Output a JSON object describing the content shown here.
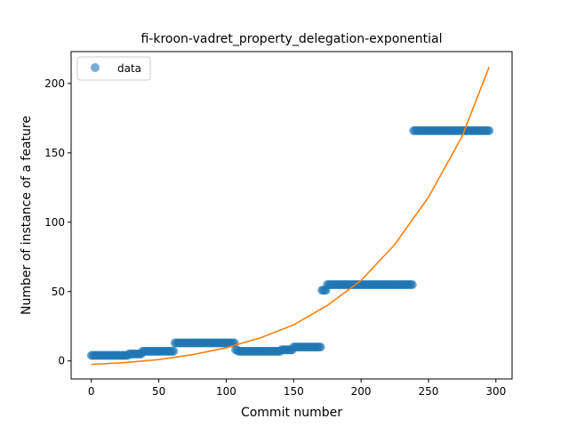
{
  "chart_data": {
    "type": "scatter",
    "title": "fi-kroon-vadret_property_delegation-exponential",
    "xlabel": "Commit number",
    "ylabel": "Number of instance of a feature",
    "xlim": [
      -15,
      312
    ],
    "ylim": [
      -13,
      223
    ],
    "xticks": [
      0,
      50,
      100,
      150,
      200,
      250,
      300
    ],
    "yticks": [
      0,
      50,
      100,
      150,
      200
    ],
    "grid": false,
    "legend": {
      "placement": "upper-left",
      "entries": [
        "data"
      ]
    },
    "colors": {
      "data": "#1f77b4",
      "fit": "#ff7f0e"
    },
    "series": [
      {
        "name": "data",
        "kind": "scatter",
        "segments": [
          {
            "x_start": 0,
            "x_end": 27,
            "y": 4
          },
          {
            "x_start": 28,
            "x_end": 37,
            "y": 5
          },
          {
            "x_start": 38,
            "x_end": 61,
            "y": 7
          },
          {
            "x_start": 62,
            "x_end": 106,
            "y": 13
          },
          {
            "x_start": 107,
            "x_end": 108,
            "y": 8
          },
          {
            "x_start": 109,
            "x_end": 140,
            "y": 7
          },
          {
            "x_start": 141,
            "x_end": 149,
            "y": 8
          },
          {
            "x_start": 150,
            "x_end": 170,
            "y": 10
          },
          {
            "x_start": 171,
            "x_end": 174,
            "y": 51
          },
          {
            "x_start": 175,
            "x_end": 238,
            "y": 55
          },
          {
            "x_start": 239,
            "x_end": 295,
            "y": 166
          }
        ]
      },
      {
        "kind": "line",
        "model": "exponential",
        "points": [
          [
            0,
            -2.5
          ],
          [
            25,
            -1.2
          ],
          [
            50,
            1
          ],
          [
            75,
            4.5
          ],
          [
            100,
            9.5
          ],
          [
            125,
            16.5
          ],
          [
            150,
            26
          ],
          [
            175,
            40
          ],
          [
            200,
            58
          ],
          [
            225,
            84
          ],
          [
            250,
            118
          ],
          [
            275,
            162
          ],
          [
            295,
            212
          ]
        ]
      }
    ]
  }
}
